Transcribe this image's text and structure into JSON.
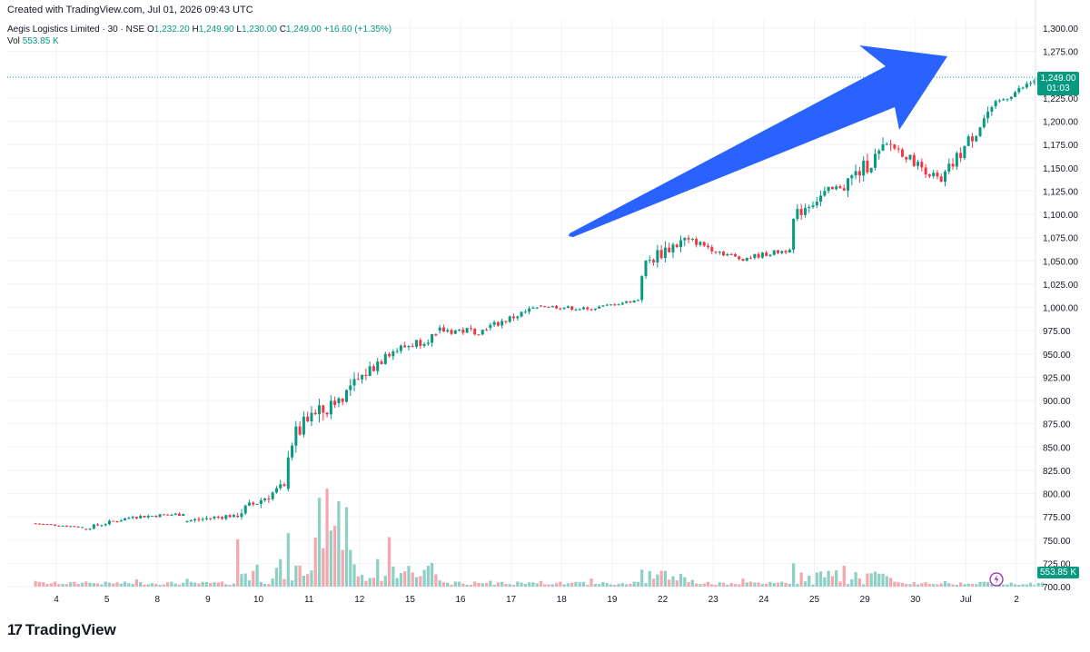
{
  "header": {
    "created": "Created with TradingView.com, Jul 01, 2026 09:43 UTC",
    "symbol": "Aegis Logistics Limited · 30 · NSE",
    "o_label": "O",
    "o_value": "1,232.20",
    "h_label": "H",
    "h_value": "1,249.90",
    "l_label": "L",
    "l_value": "1,230.00",
    "c_label": "C",
    "c_value": "1,249.00",
    "change": "+16.60 (+1.35%)",
    "vol_label": "Vol",
    "vol_value": "553.85 K"
  },
  "price_tag": {
    "price": "1,249.00",
    "countdown": "01:03"
  },
  "volume_tag": "553.85 K",
  "footer": {
    "brand": "TradingView"
  },
  "colors": {
    "up": "#089981",
    "down": "#f23645",
    "up_vol": "#8fd0c5",
    "down_vol": "#f5a6ae",
    "arrow": "#2962ff",
    "grid": "#f0f3fa",
    "alert": "#9c27b0"
  },
  "chart_data": {
    "type": "candlestick",
    "y_axis_ticks": [
      "1,300.00",
      "1,275.00",
      "1,250.00",
      "1,225.00",
      "1,200.00",
      "1,175.00",
      "1,150.00",
      "1,125.00",
      "1,100.00",
      "1,075.00",
      "1,050.00",
      "1,025.00",
      "1,000.00",
      "975.00",
      "950.00",
      "925.00",
      "900.00",
      "875.00",
      "850.00",
      "825.00",
      "800.00",
      "775.00",
      "750.00",
      "725.00",
      "700.00"
    ],
    "ylim": [
      700,
      1300
    ],
    "x_axis_ticks": [
      "4",
      "5",
      "8",
      "9",
      "10",
      "11",
      "12",
      "15",
      "16",
      "17",
      "18",
      "19",
      "22",
      "23",
      "24",
      "25",
      "29",
      "30",
      "Jul",
      "2"
    ],
    "last_price": 1249.0,
    "annotation": "upward-arrow",
    "ohlc_by_day": [
      {
        "day": "4",
        "o": 768,
        "h": 771,
        "l": 761,
        "c": 764
      },
      {
        "day": "5",
        "o": 762,
        "h": 780,
        "l": 758,
        "c": 775
      },
      {
        "day": "8",
        "o": 775,
        "h": 787,
        "l": 765,
        "c": 778
      },
      {
        "day": "9",
        "o": 770,
        "h": 782,
        "l": 750,
        "c": 777
      },
      {
        "day": "10",
        "o": 776,
        "h": 833,
        "l": 770,
        "c": 808
      },
      {
        "day": "11",
        "o": 805,
        "h": 922,
        "l": 802,
        "c": 895
      },
      {
        "day": "12",
        "o": 897,
        "h": 977,
        "l": 885,
        "c": 950
      },
      {
        "day": "15",
        "o": 950,
        "h": 975,
        "l": 918,
        "c": 970
      },
      {
        "day": "16",
        "o": 975,
        "h": 1007,
        "l": 960,
        "c": 975
      },
      {
        "day": "17",
        "o": 978,
        "h": 1015,
        "l": 975,
        "c": 1000
      },
      {
        "day": "18",
        "o": 1002,
        "h": 1012,
        "l": 990,
        "c": 998
      },
      {
        "day": "19",
        "o": 998,
        "h": 1010,
        "l": 992,
        "c": 1008
      },
      {
        "day": "22",
        "o": 1008,
        "h": 1094,
        "l": 1005,
        "c": 1073
      },
      {
        "day": "23",
        "o": 1073,
        "h": 1080,
        "l": 1043,
        "c": 1052
      },
      {
        "day": "24",
        "o": 1052,
        "h": 1072,
        "l": 1042,
        "c": 1062
      },
      {
        "day": "25",
        "o": 1062,
        "h": 1132,
        "l": 1058,
        "c": 1128
      },
      {
        "day": "29",
        "o": 1128,
        "h": 1188,
        "l": 1090,
        "c": 1175
      },
      {
        "day": "30",
        "o": 1175,
        "h": 1180,
        "l": 1128,
        "c": 1135
      },
      {
        "day": "Jul",
        "o": 1135,
        "h": 1220,
        "l": 1130,
        "c": 1215
      },
      {
        "day": "2",
        "o": 1216,
        "h": 1249.9,
        "l": 1213,
        "c": 1249
      }
    ]
  }
}
